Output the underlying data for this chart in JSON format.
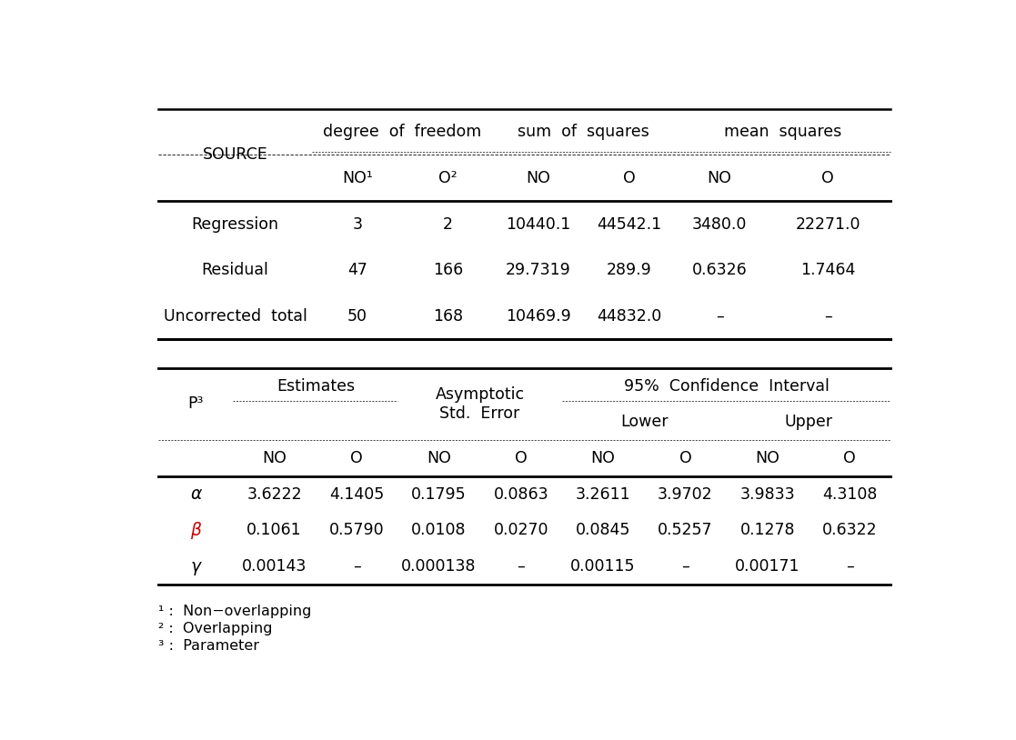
{
  "top_table": {
    "col_headers": [
      "SOURCE",
      "degree  of  freedom",
      "sum  of  squares",
      "mean  squares"
    ],
    "sub_headers": [
      "NO¹",
      "O²",
      "NO",
      "O",
      "NO",
      "O"
    ],
    "rows": [
      {
        "label": "Regression",
        "values": [
          "3",
          "2",
          "10440.1",
          "44542.1",
          "3480.0",
          "22271.0"
        ]
      },
      {
        "label": "Residual",
        "values": [
          "47",
          "166",
          "29.7319",
          "289.9",
          "0.6326",
          "1.7464"
        ]
      },
      {
        "label": "Uncorrected  total",
        "values": [
          "50",
          "168",
          "10469.9",
          "44832.0",
          "–",
          "–"
        ]
      }
    ]
  },
  "bottom_table": {
    "sub_headers": [
      "NO",
      "O",
      "NO",
      "O",
      "NO",
      "O",
      "NO",
      "O"
    ],
    "rows": [
      {
        "label": "α",
        "color": "#000000",
        "values": [
          "3.6222",
          "4.1405",
          "0.1795",
          "0.0863",
          "3.2611",
          "3.9702",
          "3.9833",
          "4.3108"
        ]
      },
      {
        "label": "β",
        "color": "#cc0000",
        "values": [
          "0.1061",
          "0.5790",
          "0.0108",
          "0.0270",
          "0.0845",
          "0.5257",
          "0.1278",
          "0.6322"
        ]
      },
      {
        "label": "γ",
        "color": "#000000",
        "values": [
          "0.00143",
          "–",
          "0.000138",
          "–",
          "0.00115",
          "–",
          "0.00171",
          "–"
        ]
      }
    ]
  },
  "footnotes": [
    "¹ :  Non−overlapping",
    "² :  Overlapping",
    "³ :  Parameter"
  ],
  "bg": "#ffffff",
  "fg": "#000000",
  "fs": 12.5
}
